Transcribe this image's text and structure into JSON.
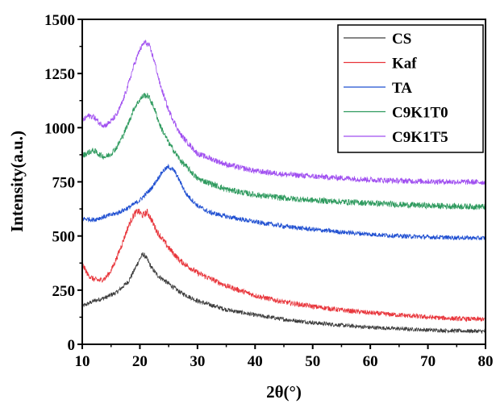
{
  "chart_data": {
    "type": "line",
    "title": "",
    "xlabel": "2θ(°)",
    "ylabel": "Intensity(a.u.)",
    "xlim": [
      10,
      80
    ],
    "ylim": [
      0,
      1500
    ],
    "xticks": [
      "10",
      "20",
      "30",
      "40",
      "50",
      "60",
      "70",
      "80"
    ],
    "yticks": [
      "0",
      "250",
      "500",
      "750",
      "1000",
      "1250",
      "1500"
    ],
    "legend_position": "top-right",
    "grid": false,
    "series": [
      {
        "name": "CS",
        "color": "#3d3d3d",
        "noise": 14,
        "x": [
          10,
          12,
          14,
          16,
          18,
          19,
          20,
          20.5,
          21,
          22,
          23,
          25,
          27,
          30,
          35,
          40,
          45,
          50,
          55,
          60,
          65,
          70,
          75,
          80
        ],
        "y": [
          175,
          200,
          215,
          240,
          290,
          340,
          395,
          415,
          405,
          355,
          320,
          280,
          240,
          200,
          160,
          135,
          115,
          100,
          88,
          78,
          72,
          66,
          62,
          60
        ]
      },
      {
        "name": "Kaf",
        "color": "#e8343a",
        "noise": 16,
        "x": [
          10,
          11,
          12,
          13,
          14,
          15,
          16,
          17,
          18,
          19,
          19.7,
          20.5,
          21.3,
          22,
          23,
          25,
          27,
          30,
          35,
          40,
          45,
          50,
          55,
          60,
          65,
          70,
          75,
          80
        ],
        "y": [
          370,
          320,
          300,
          295,
          305,
          340,
          400,
          470,
          545,
          600,
          615,
          595,
          610,
          575,
          520,
          445,
          385,
          330,
          270,
          225,
          195,
          175,
          158,
          145,
          135,
          125,
          118,
          115
        ]
      },
      {
        "name": "TA",
        "color": "#1f4fd1",
        "noise": 11,
        "x": [
          10,
          12,
          14,
          16,
          18,
          20,
          22,
          23,
          24,
          25,
          26,
          27,
          28,
          30,
          32,
          35,
          40,
          45,
          50,
          55,
          60,
          65,
          70,
          75,
          80
        ],
        "y": [
          580,
          575,
          590,
          605,
          630,
          665,
          720,
          760,
          800,
          820,
          800,
          750,
          695,
          640,
          610,
          590,
          565,
          545,
          530,
          518,
          508,
          500,
          495,
          492,
          490
        ]
      },
      {
        "name": "C9K1T0",
        "color": "#2e9a5e",
        "noise": 14,
        "x": [
          10,
          11,
          12,
          13,
          14,
          15,
          16,
          17,
          18,
          19,
          20,
          20.7,
          21.5,
          22.5,
          23.5,
          25,
          27,
          30,
          35,
          40,
          45,
          50,
          55,
          60,
          65,
          70,
          75,
          80
        ],
        "y": [
          870,
          885,
          895,
          875,
          865,
          880,
          910,
          960,
          1020,
          1090,
          1130,
          1150,
          1145,
          1090,
          1010,
          930,
          850,
          765,
          715,
          690,
          675,
          665,
          658,
          652,
          645,
          640,
          637,
          635
        ]
      },
      {
        "name": "C9K1T5",
        "color": "#a04ff0",
        "noise": 13,
        "x": [
          10,
          11,
          12,
          13,
          14,
          15,
          16,
          17,
          18,
          19,
          20,
          20.8,
          21.6,
          22.5,
          23.5,
          25,
          27,
          30,
          35,
          40,
          45,
          50,
          55,
          60,
          65,
          70,
          75,
          80
        ],
        "y": [
          1030,
          1055,
          1050,
          1020,
          1010,
          1030,
          1060,
          1120,
          1200,
          1290,
          1360,
          1395,
          1380,
          1310,
          1200,
          1080,
          970,
          880,
          830,
          800,
          785,
          775,
          768,
          760,
          755,
          752,
          750,
          748
        ]
      }
    ]
  }
}
